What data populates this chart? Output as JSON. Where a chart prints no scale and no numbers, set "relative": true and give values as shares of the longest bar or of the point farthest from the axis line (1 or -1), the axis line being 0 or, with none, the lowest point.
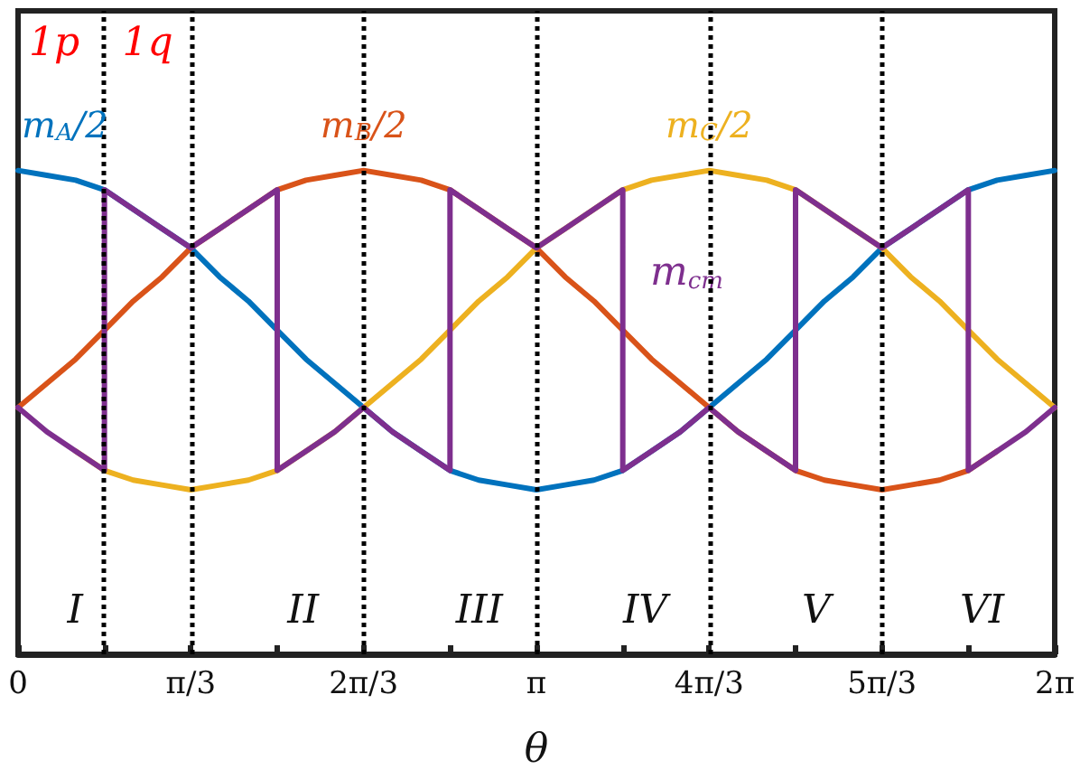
{
  "chart_data": {
    "type": "line",
    "relative": true,
    "xlabel": "θ",
    "marker": "none",
    "line_style": "solid",
    "xlim": [
      0,
      6.2832
    ],
    "xticks": [
      {
        "value": 0,
        "label": "0"
      },
      {
        "value": 0.5236,
        "label": null
      },
      {
        "value": 1.0472,
        "label": "π/3"
      },
      {
        "value": 1.5708,
        "label": null
      },
      {
        "value": 2.0944,
        "label": "2π/3"
      },
      {
        "value": 2.618,
        "label": null
      },
      {
        "value": 3.1416,
        "label": "π"
      },
      {
        "value": 3.6652,
        "label": null
      },
      {
        "value": 4.1888,
        "label": "4π/3"
      },
      {
        "value": 4.7124,
        "label": null
      },
      {
        "value": 5.236,
        "label": "5π/3"
      },
      {
        "value": 5.7596,
        "label": null
      },
      {
        "value": 6.2832,
        "label": "2π"
      }
    ],
    "x": [
      0,
      0.1745,
      0.3491,
      0.5236,
      0.6981,
      0.8727,
      1.0472,
      1.2217,
      1.3963,
      1.5708,
      1.7453,
      1.9199,
      2.0944,
      2.2689,
      2.4435,
      2.618,
      2.7925,
      2.9671,
      3.1416,
      3.3161,
      3.4907,
      3.6652,
      3.8397,
      4.0143,
      4.1888,
      4.3633,
      4.5379,
      4.7124,
      4.8869,
      5.0615,
      5.236,
      5.4105,
      5.5851,
      5.7596,
      5.9341,
      6.1087,
      6.2832
    ],
    "series": [
      {
        "name": "m$_{A}$/2",
        "color": "#0072bd",
        "values": [
          1.0,
          0.99,
          0.98,
          0.96,
          0.92,
          0.88,
          0.84,
          0.78,
          0.73,
          0.67,
          0.61,
          0.56,
          0.51,
          0.46,
          0.42,
          0.38,
          0.36,
          0.35,
          0.34,
          0.35,
          0.36,
          0.38,
          0.42,
          0.46,
          0.51,
          0.56,
          0.61,
          0.67,
          0.73,
          0.78,
          0.84,
          0.88,
          0.92,
          0.96,
          0.98,
          0.99,
          1.0
        ]
      },
      {
        "name": "m$_{B}$/2",
        "color": "#d95319",
        "values": [
          0.51,
          0.56,
          0.61,
          0.67,
          0.73,
          0.78,
          0.84,
          0.88,
          0.92,
          0.96,
          0.98,
          0.99,
          1.0,
          0.99,
          0.98,
          0.96,
          0.92,
          0.88,
          0.84,
          0.78,
          0.73,
          0.67,
          0.61,
          0.56,
          0.51,
          0.46,
          0.42,
          0.38,
          0.36,
          0.35,
          0.34,
          0.35,
          0.36,
          0.38,
          0.42,
          null,
          null
        ]
      },
      {
        "name": "m$_{C}$/2",
        "color": "#edb120",
        "values": [
          null,
          null,
          0.42,
          0.38,
          0.36,
          0.35,
          0.34,
          0.35,
          0.36,
          0.38,
          0.42,
          0.46,
          0.51,
          0.56,
          0.61,
          0.67,
          0.73,
          0.78,
          0.84,
          0.88,
          0.92,
          0.96,
          0.98,
          0.99,
          1.0,
          0.99,
          0.98,
          0.96,
          0.92,
          0.88,
          0.84,
          0.78,
          0.73,
          0.67,
          0.61,
          0.56,
          0.51
        ]
      },
      {
        "color": "#7e2f8e",
        "x": [
          0,
          0.1745,
          0.3491,
          0.5236,
          0.5236,
          0.6981,
          0.8727,
          1.0472,
          1.2217,
          1.3963,
          1.5708,
          1.5708,
          1.7453,
          1.9199,
          2.0944,
          2.2689,
          2.4435,
          2.618,
          2.618,
          2.7925,
          2.9671,
          3.1416,
          3.3161,
          3.4907,
          3.6652,
          3.6652,
          3.8397,
          4.0143,
          4.1888,
          4.3633,
          4.5379,
          4.7124,
          4.7124,
          4.8869,
          5.0615,
          5.236,
          5.4105,
          5.5851,
          5.7596,
          5.7596,
          5.9341,
          6.1087,
          6.2832
        ],
        "values": [
          0.51,
          0.46,
          0.42,
          0.38,
          0.96,
          0.92,
          0.88,
          0.84,
          0.88,
          0.92,
          0.96,
          0.38,
          0.42,
          0.46,
          0.51,
          0.46,
          0.42,
          0.38,
          0.96,
          0.92,
          0.88,
          0.84,
          0.88,
          0.92,
          0.96,
          0.38,
          0.42,
          0.46,
          0.51,
          0.46,
          0.42,
          0.38,
          0.96,
          0.92,
          0.88,
          0.84,
          0.88,
          0.92,
          0.96,
          0.38,
          0.42,
          0.46,
          0.51
        ]
      }
    ],
    "ref_lines": [
      {
        "axis": "x",
        "value": 0.5236,
        "line_style": "dotted",
        "color": "#000000"
      },
      {
        "axis": "x",
        "value": 1.0472,
        "line_style": "dotted",
        "color": "#000000"
      },
      {
        "axis": "x",
        "value": 2.0944,
        "line_style": "dotted",
        "color": "#000000"
      },
      {
        "axis": "x",
        "value": 3.1416,
        "line_style": "dotted",
        "color": "#000000"
      },
      {
        "axis": "x",
        "value": 4.1888,
        "line_style": "dotted",
        "color": "#000000"
      },
      {
        "axis": "x",
        "value": 5.236,
        "line_style": "dotted",
        "color": "#000000"
      }
    ],
    "annotations": [
      "1p",
      "1q",
      "I",
      "II",
      "III",
      "IV",
      "V",
      "VI",
      "m$_{cm}$"
    ]
  }
}
